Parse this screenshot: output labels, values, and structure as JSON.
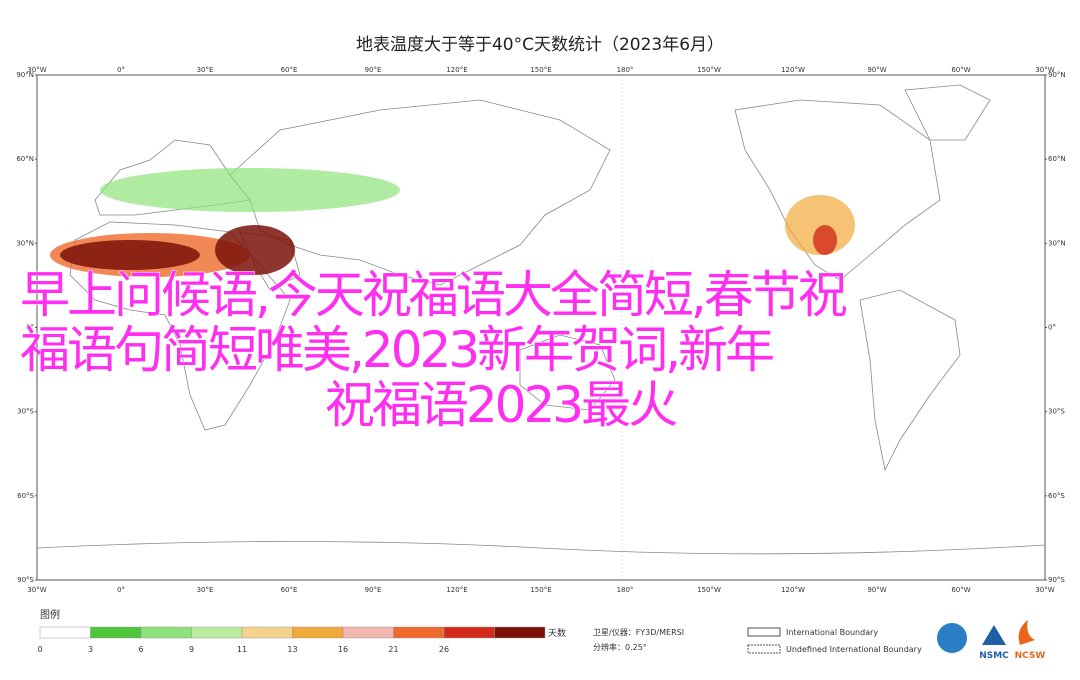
{
  "title": "地表温度大于等于40°C天数统计（2023年6月）",
  "latitude_labels": [
    "90°N",
    "60°N",
    "30°N",
    "0°",
    "30°S",
    "60°S",
    "90°S"
  ],
  "longitude_labels": [
    "30°W",
    "0°",
    "30°E",
    "60°E",
    "90°E",
    "120°E",
    "150°E",
    "180°",
    "150°W",
    "120°W",
    "90°W",
    "60°W",
    "30°W"
  ],
  "legend": {
    "title": "图例",
    "unit": "天数",
    "colors": [
      "#ffffff",
      "#4cc63a",
      "#8ee27a",
      "#b9ec9e",
      "#f6d38d",
      "#f2a93b",
      "#f4b6b0",
      "#ee6a2c",
      "#d42a1c",
      "#7a1208"
    ],
    "values": [
      0,
      3,
      6,
      9,
      11,
      13,
      16,
      21,
      26
    ]
  },
  "source": {
    "satellite": "卫星/仪器：FY3D/MERSI",
    "resolution": "分辨率：0.25°"
  },
  "boundaries": [
    "International Boundary",
    "Undefined International Boundary"
  ],
  "logos": [
    "NSMC",
    "NCSW"
  ],
  "overlay": [
    "早上问候语,今天祝福语大全简短,春节祝",
    "福语句简短唯美,2023新年贺词,新年",
    "祝福语2023最火"
  ]
}
